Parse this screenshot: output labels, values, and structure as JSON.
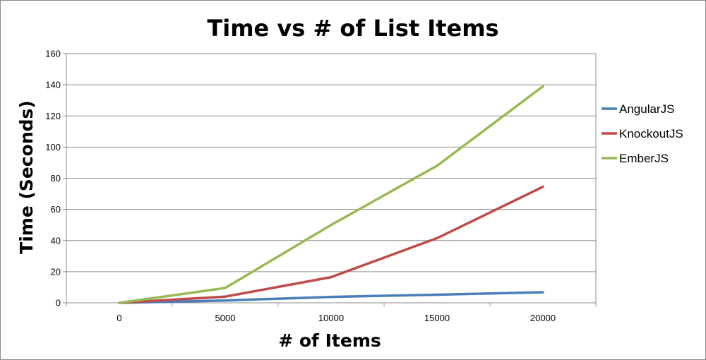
{
  "chart_data": {
    "type": "line",
    "title": "Time vs # of List Items",
    "xlabel": "# of Items",
    "ylabel": "Time (Seconds)",
    "x": [
      0,
      5000,
      10000,
      15000,
      20000
    ],
    "x_tick_labels": [
      "0",
      "5000",
      "10000",
      "15000",
      "20000"
    ],
    "ylim": [
      0,
      160
    ],
    "y_ticks": [
      0,
      20,
      40,
      60,
      80,
      100,
      120,
      140,
      160
    ],
    "grid": "horizontal",
    "legend_position": "right",
    "series": [
      {
        "name": "AngularJS",
        "color": "#4a7ebb",
        "values": [
          0,
          1.5,
          3.8,
          5.2,
          6.8
        ]
      },
      {
        "name": "KnockoutJS",
        "color": "#be4b48",
        "values": [
          0,
          4,
          16.5,
          41.5,
          74.5
        ]
      },
      {
        "name": "EmberJS",
        "color": "#98b954",
        "values": [
          0,
          9.5,
          50,
          88,
          139
        ]
      }
    ]
  }
}
